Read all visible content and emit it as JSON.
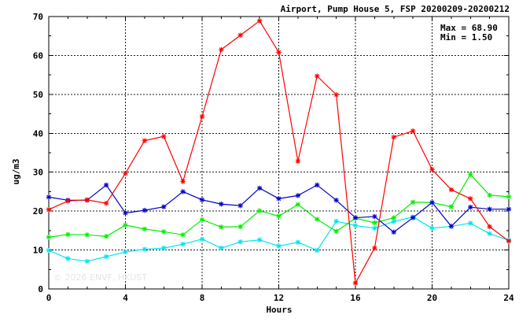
{
  "chart_data": {
    "type": "line",
    "title": "Airport, Pump House 5, FSP 20200209-20200212",
    "xlabel": "Hours",
    "ylabel": "ug/m3",
    "xlim": [
      0,
      24
    ],
    "ylim": [
      0,
      70
    ],
    "xticks": [
      0,
      4,
      8,
      12,
      16,
      20,
      24
    ],
    "yticks": [
      0,
      10,
      20,
      30,
      40,
      50,
      60,
      70
    ],
    "grid": true,
    "stats": {
      "max_label": "Max = 68.90",
      "min_label": "Min =  1.50"
    },
    "watermark": "© 2026  ENVF, HKUST",
    "x": [
      0,
      1,
      2,
      3,
      4,
      5,
      6,
      7,
      8,
      9,
      10,
      11,
      12,
      13,
      14,
      15,
      16,
      17,
      18,
      19,
      20,
      21,
      22,
      23,
      24
    ],
    "series": [
      {
        "color": "#ff0000",
        "values": [
          20.4,
          22.6,
          22.9,
          22.0,
          29.7,
          38.1,
          39.2,
          27.6,
          44.3,
          61.5,
          65.2,
          68.9,
          60.8,
          32.8,
          54.7,
          49.9,
          1.5,
          10.5,
          39.0,
          40.6,
          30.7,
          25.5,
          23.2,
          16.0,
          12.3
        ]
      },
      {
        "color": "#0000cc",
        "values": [
          23.6,
          22.8,
          22.8,
          26.7,
          19.5,
          20.2,
          21.1,
          25.0,
          22.9,
          21.8,
          21.4,
          25.9,
          23.2,
          24.0,
          26.7,
          22.8,
          18.3,
          18.6,
          14.6,
          18.3,
          22.2,
          16.1,
          21.0,
          20.5,
          20.5
        ]
      },
      {
        "color": "#00ee00",
        "values": [
          13.3,
          14.0,
          13.9,
          13.5,
          16.4,
          15.4,
          14.7,
          13.9,
          17.8,
          15.9,
          16.0,
          20.1,
          18.7,
          21.7,
          17.9,
          14.8,
          18.2,
          17.0,
          18.3,
          22.3,
          22.2,
          21.1,
          29.4,
          24.1,
          23.7
        ]
      },
      {
        "color": "#00e5ee",
        "values": [
          9.9,
          7.8,
          7.1,
          8.3,
          9.5,
          10.2,
          10.5,
          11.5,
          12.8,
          10.5,
          12.1,
          12.6,
          11.0,
          12.0,
          9.9,
          17.4,
          16.3,
          15.6,
          17.3,
          18.5,
          15.6,
          16.1,
          16.9,
          14.2,
          12.5
        ]
      }
    ]
  }
}
